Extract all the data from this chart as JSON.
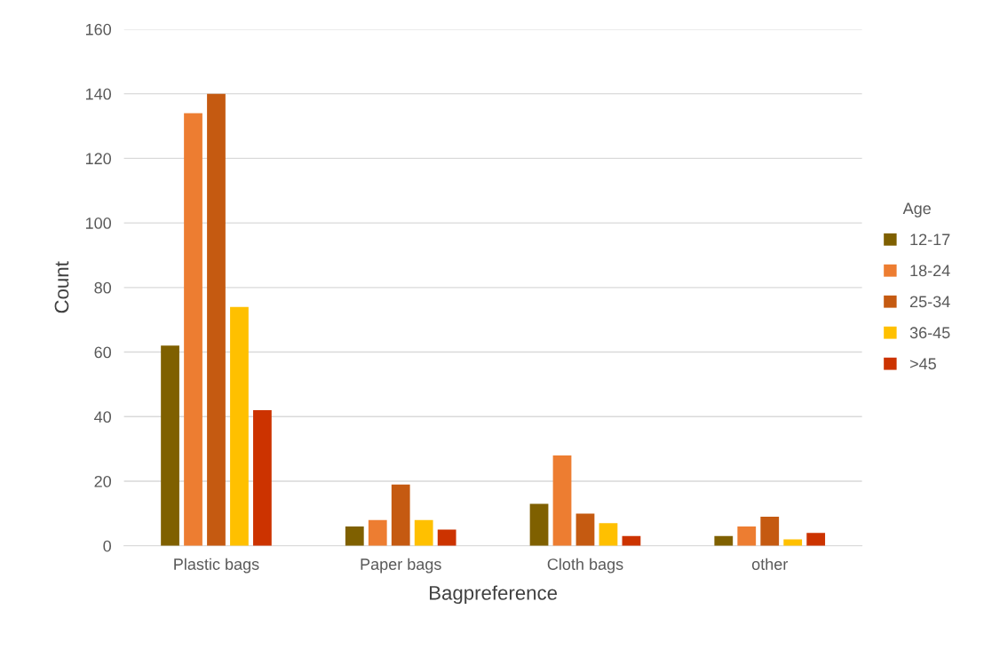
{
  "chart_data": {
    "type": "bar",
    "xlabel": "Bagpreference",
    "ylabel": "Count",
    "legend_title": "Age",
    "categories": [
      "Plastic bags",
      "Paper bags",
      "Cloth bags",
      "other"
    ],
    "series": [
      {
        "name": "12-17",
        "color": "#7f6000",
        "values": [
          62,
          6,
          13,
          3
        ]
      },
      {
        "name": "18-24",
        "color": "#ed7d31",
        "values": [
          134,
          8,
          28,
          6
        ]
      },
      {
        "name": "25-34",
        "color": "#c55a11",
        "values": [
          140,
          19,
          10,
          9
        ]
      },
      {
        "name": "36-45",
        "color": "#ffc000",
        "values": [
          74,
          8,
          7,
          2
        ]
      },
      {
        "name": ">45",
        "color": "#cc3300",
        "values": [
          42,
          5,
          3,
          4
        ]
      }
    ],
    "ylim": [
      0,
      160
    ],
    "yticks": [
      0,
      20,
      40,
      60,
      80,
      100,
      120,
      140,
      160
    ],
    "grid": "y",
    "legend": "right"
  }
}
